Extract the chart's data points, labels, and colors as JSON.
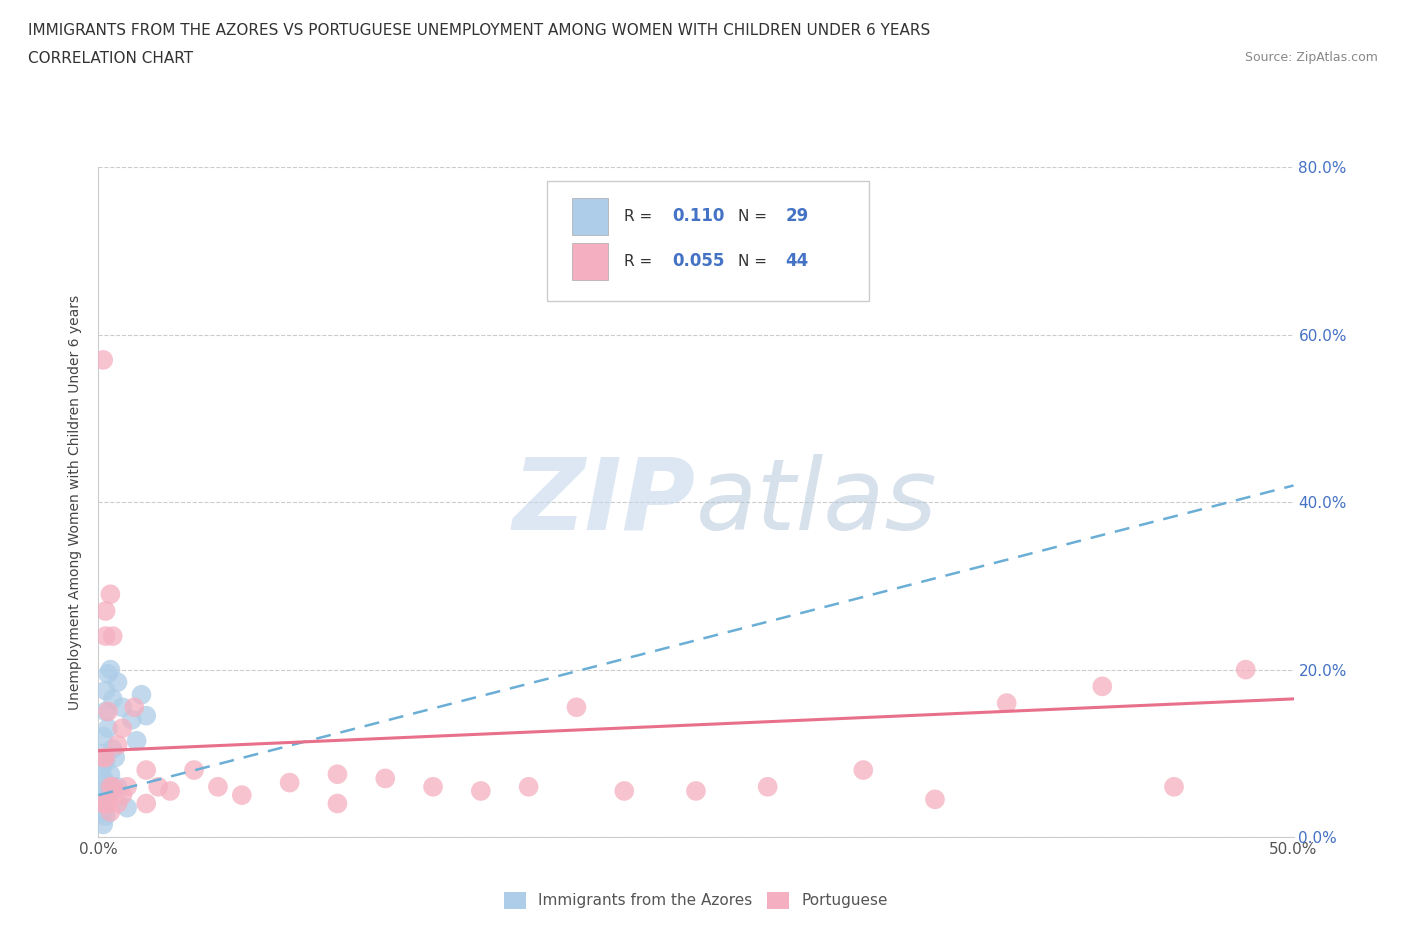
{
  "title_line1": "IMMIGRANTS FROM THE AZORES VS PORTUGUESE UNEMPLOYMENT AMONG WOMEN WITH CHILDREN UNDER 6 YEARS",
  "title_line2": "CORRELATION CHART",
  "source": "Source: ZipAtlas.com",
  "ylabel": "Unemployment Among Women with Children Under 6 years",
  "xlim": [
    0.0,
    0.5
  ],
  "ylim": [
    0.0,
    0.8
  ],
  "r_azores": 0.11,
  "n_azores": 29,
  "r_portuguese": 0.055,
  "n_portuguese": 44,
  "azores_color": "#aecde8",
  "portuguese_color": "#f4afc0",
  "azores_line_color": "#6aaed6",
  "portuguese_line_color": "#e8708a",
  "legend_label_azores": "Immigrants from the Azores",
  "legend_label_portuguese": "Portuguese",
  "watermark_color": "#d0dff0",
  "background_color": "#ffffff",
  "grid_color": "#cccccc",
  "azores_scatter_x": [
    0.002,
    0.002,
    0.002,
    0.002,
    0.002,
    0.002,
    0.002,
    0.002,
    0.003,
    0.003,
    0.003,
    0.003,
    0.003,
    0.004,
    0.004,
    0.004,
    0.005,
    0.005,
    0.006,
    0.006,
    0.007,
    0.008,
    0.008,
    0.01,
    0.012,
    0.014,
    0.016,
    0.018,
    0.02
  ],
  "azores_scatter_y": [
    0.12,
    0.1,
    0.085,
    0.07,
    0.055,
    0.045,
    0.03,
    0.015,
    0.175,
    0.15,
    0.09,
    0.065,
    0.025,
    0.195,
    0.13,
    0.05,
    0.2,
    0.075,
    0.165,
    0.105,
    0.095,
    0.185,
    0.06,
    0.155,
    0.035,
    0.14,
    0.115,
    0.17,
    0.145
  ],
  "portuguese_scatter_x": [
    0.002,
    0.002,
    0.002,
    0.003,
    0.003,
    0.003,
    0.003,
    0.004,
    0.004,
    0.005,
    0.005,
    0.005,
    0.006,
    0.006,
    0.008,
    0.008,
    0.01,
    0.01,
    0.012,
    0.015,
    0.02,
    0.02,
    0.025,
    0.03,
    0.04,
    0.05,
    0.06,
    0.08,
    0.1,
    0.1,
    0.12,
    0.14,
    0.16,
    0.18,
    0.2,
    0.22,
    0.25,
    0.28,
    0.32,
    0.35,
    0.38,
    0.42,
    0.45,
    0.48
  ],
  "portuguese_scatter_y": [
    0.57,
    0.095,
    0.04,
    0.27,
    0.24,
    0.095,
    0.04,
    0.15,
    0.04,
    0.29,
    0.06,
    0.03,
    0.24,
    0.06,
    0.11,
    0.04,
    0.13,
    0.05,
    0.06,
    0.155,
    0.08,
    0.04,
    0.06,
    0.055,
    0.08,
    0.06,
    0.05,
    0.065,
    0.075,
    0.04,
    0.07,
    0.06,
    0.055,
    0.06,
    0.155,
    0.055,
    0.055,
    0.06,
    0.08,
    0.045,
    0.16,
    0.18,
    0.06,
    0.2
  ]
}
